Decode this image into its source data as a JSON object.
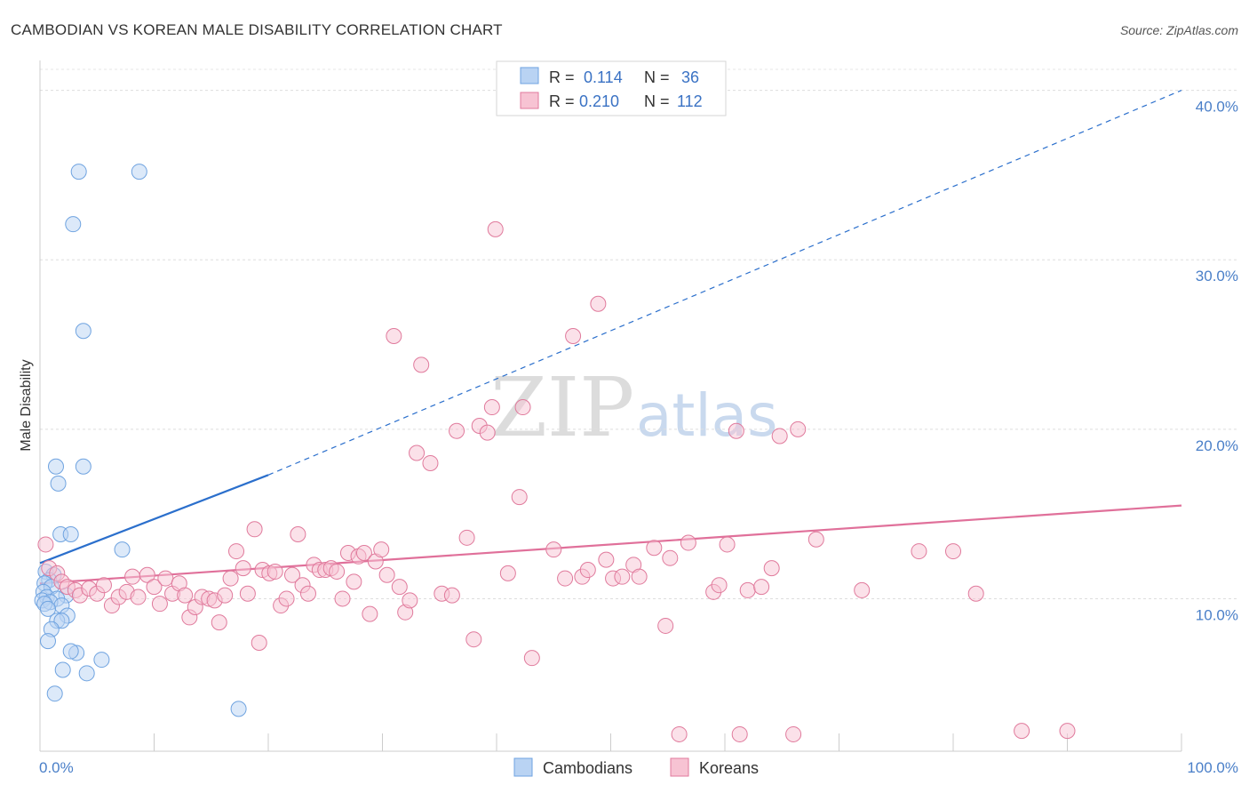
{
  "chart_data": {
    "type": "scatter",
    "title": "CAMBODIAN VS KOREAN MALE DISABILITY CORRELATION CHART",
    "source": "Source: ZipAtlas.com",
    "xlabel": "",
    "ylabel": "Male Disability",
    "xlim": [
      0,
      100
    ],
    "ylim": [
      1,
      41.5
    ],
    "x_tick_labels": [
      "0.0%",
      "100.0%"
    ],
    "y_ticks": [
      10,
      20,
      30,
      40
    ],
    "y_tick_labels": [
      "10.0%",
      "20.0%",
      "30.0%",
      "40.0%"
    ],
    "grid": true,
    "watermark": {
      "zip": "ZIP",
      "atlas": "atlas"
    },
    "legend": [
      {
        "name": "Cambodians",
        "r_label": "R =",
        "r": "0.114",
        "n_label": "N =",
        "n": "36",
        "color": "#6fa3e0",
        "fill": "#b9d3f3"
      },
      {
        "name": "Koreans",
        "r_label": "R =",
        "r": "0.210",
        "n_label": "N =",
        "n": "112",
        "color": "#e07a9c",
        "fill": "#f7c3d3"
      }
    ],
    "series": [
      {
        "name": "Cambodians",
        "color": "#6fa3e0",
        "fill": "#b9d3f3",
        "trend": {
          "x0": 0,
          "y0": 12.1,
          "x1": 20,
          "y1": 17.3,
          "dash_x1": 100,
          "dash_y1": 40.0,
          "color": "#2b6fcc"
        },
        "points": [
          [
            3.4,
            35.2
          ],
          [
            8.7,
            35.2
          ],
          [
            2.9,
            32.1
          ],
          [
            3.8,
            25.8
          ],
          [
            1.4,
            17.8
          ],
          [
            3.8,
            17.8
          ],
          [
            1.6,
            16.8
          ],
          [
            1.8,
            13.8
          ],
          [
            2.7,
            13.8
          ],
          [
            7.2,
            12.9
          ],
          [
            0.5,
            11.6
          ],
          [
            1.2,
            11.4
          ],
          [
            0.8,
            11.1
          ],
          [
            0.4,
            10.9
          ],
          [
            1.0,
            10.7
          ],
          [
            0.3,
            10.4
          ],
          [
            2.3,
            10.2
          ],
          [
            0.6,
            10.1
          ],
          [
            1.5,
            10.0
          ],
          [
            0.2,
            9.9
          ],
          [
            0.9,
            9.8
          ],
          [
            0.4,
            9.7
          ],
          [
            1.9,
            9.6
          ],
          [
            0.7,
            9.4
          ],
          [
            2.4,
            9.0
          ],
          [
            1.5,
            8.7
          ],
          [
            1.9,
            8.7
          ],
          [
            1.0,
            8.2
          ],
          [
            0.7,
            7.5
          ],
          [
            3.2,
            6.8
          ],
          [
            2.7,
            6.9
          ],
          [
            5.4,
            6.4
          ],
          [
            2.0,
            5.8
          ],
          [
            4.1,
            5.6
          ],
          [
            1.3,
            4.4
          ],
          [
            17.4,
            3.5
          ]
        ]
      },
      {
        "name": "Koreans",
        "color": "#e07a9c",
        "fill": "#f7c3d3",
        "trend": {
          "x0": 0,
          "y0": 10.9,
          "x1": 100,
          "y1": 15.5,
          "color": "#e0709a"
        },
        "points": [
          [
            0.5,
            13.2
          ],
          [
            0.8,
            11.8
          ],
          [
            1.5,
            11.5
          ],
          [
            1.9,
            11.0
          ],
          [
            2.4,
            10.7
          ],
          [
            3.1,
            10.5
          ],
          [
            3.5,
            10.2
          ],
          [
            4.3,
            10.6
          ],
          [
            5.0,
            10.3
          ],
          [
            5.6,
            10.8
          ],
          [
            6.3,
            9.6
          ],
          [
            6.9,
            10.1
          ],
          [
            7.6,
            10.4
          ],
          [
            8.1,
            11.3
          ],
          [
            8.6,
            10.1
          ],
          [
            9.4,
            11.4
          ],
          [
            10.0,
            10.7
          ],
          [
            10.5,
            9.7
          ],
          [
            11.0,
            11.2
          ],
          [
            11.6,
            10.3
          ],
          [
            12.2,
            10.9
          ],
          [
            12.7,
            10.2
          ],
          [
            13.1,
            8.9
          ],
          [
            13.6,
            9.5
          ],
          [
            14.2,
            10.1
          ],
          [
            14.8,
            10.0
          ],
          [
            15.3,
            9.9
          ],
          [
            15.7,
            8.6
          ],
          [
            16.2,
            10.2
          ],
          [
            16.7,
            11.2
          ],
          [
            17.2,
            12.8
          ],
          [
            17.8,
            11.8
          ],
          [
            18.2,
            10.3
          ],
          [
            18.8,
            14.1
          ],
          [
            19.2,
            7.4
          ],
          [
            19.5,
            11.7
          ],
          [
            20.1,
            11.5
          ],
          [
            20.6,
            11.6
          ],
          [
            21.1,
            9.6
          ],
          [
            21.6,
            10.0
          ],
          [
            22.1,
            11.4
          ],
          [
            22.6,
            13.8
          ],
          [
            23.0,
            10.8
          ],
          [
            23.5,
            10.3
          ],
          [
            24.0,
            12.0
          ],
          [
            24.5,
            11.7
          ],
          [
            25.0,
            11.7
          ],
          [
            25.5,
            11.8
          ],
          [
            26.0,
            11.6
          ],
          [
            26.5,
            10.0
          ],
          [
            27.0,
            12.7
          ],
          [
            27.5,
            11.0
          ],
          [
            27.9,
            12.5
          ],
          [
            28.4,
            12.7
          ],
          [
            28.9,
            9.1
          ],
          [
            29.4,
            12.2
          ],
          [
            29.9,
            12.9
          ],
          [
            30.4,
            11.4
          ],
          [
            31.0,
            25.5
          ],
          [
            31.5,
            10.7
          ],
          [
            32.0,
            9.2
          ],
          [
            32.4,
            9.9
          ],
          [
            33.0,
            18.6
          ],
          [
            33.4,
            23.8
          ],
          [
            34.2,
            18.0
          ],
          [
            35.2,
            10.3
          ],
          [
            36.1,
            10.2
          ],
          [
            36.5,
            19.9
          ],
          [
            37.4,
            13.6
          ],
          [
            38.0,
            7.6
          ],
          [
            38.5,
            20.2
          ],
          [
            39.2,
            19.8
          ],
          [
            39.6,
            21.3
          ],
          [
            39.9,
            31.8
          ],
          [
            41.0,
            11.5
          ],
          [
            42.0,
            16.0
          ],
          [
            42.3,
            21.3
          ],
          [
            43.1,
            6.5
          ],
          [
            45.0,
            12.9
          ],
          [
            46.0,
            11.2
          ],
          [
            46.7,
            25.5
          ],
          [
            47.5,
            11.3
          ],
          [
            48.0,
            11.7
          ],
          [
            48.9,
            27.4
          ],
          [
            49.6,
            12.3
          ],
          [
            50.2,
            11.2
          ],
          [
            51.0,
            11.3
          ],
          [
            52.0,
            12.0
          ],
          [
            52.5,
            11.3
          ],
          [
            53.8,
            13.0
          ],
          [
            54.8,
            8.4
          ],
          [
            55.2,
            12.4
          ],
          [
            56.0,
            2.0
          ],
          [
            56.8,
            13.3
          ],
          [
            59.0,
            10.4
          ],
          [
            59.5,
            10.8
          ],
          [
            60.2,
            13.2
          ],
          [
            61.0,
            19.9
          ],
          [
            61.3,
            2.0
          ],
          [
            62.0,
            10.5
          ],
          [
            63.2,
            10.7
          ],
          [
            64.1,
            11.8
          ],
          [
            64.8,
            19.6
          ],
          [
            66.0,
            2.0
          ],
          [
            66.4,
            20.0
          ],
          [
            68.0,
            13.5
          ],
          [
            72.0,
            10.5
          ],
          [
            77.0,
            12.8
          ],
          [
            80.0,
            12.8
          ],
          [
            82.0,
            10.3
          ],
          [
            86.0,
            2.2
          ],
          [
            90.0,
            2.2
          ]
        ]
      }
    ]
  }
}
